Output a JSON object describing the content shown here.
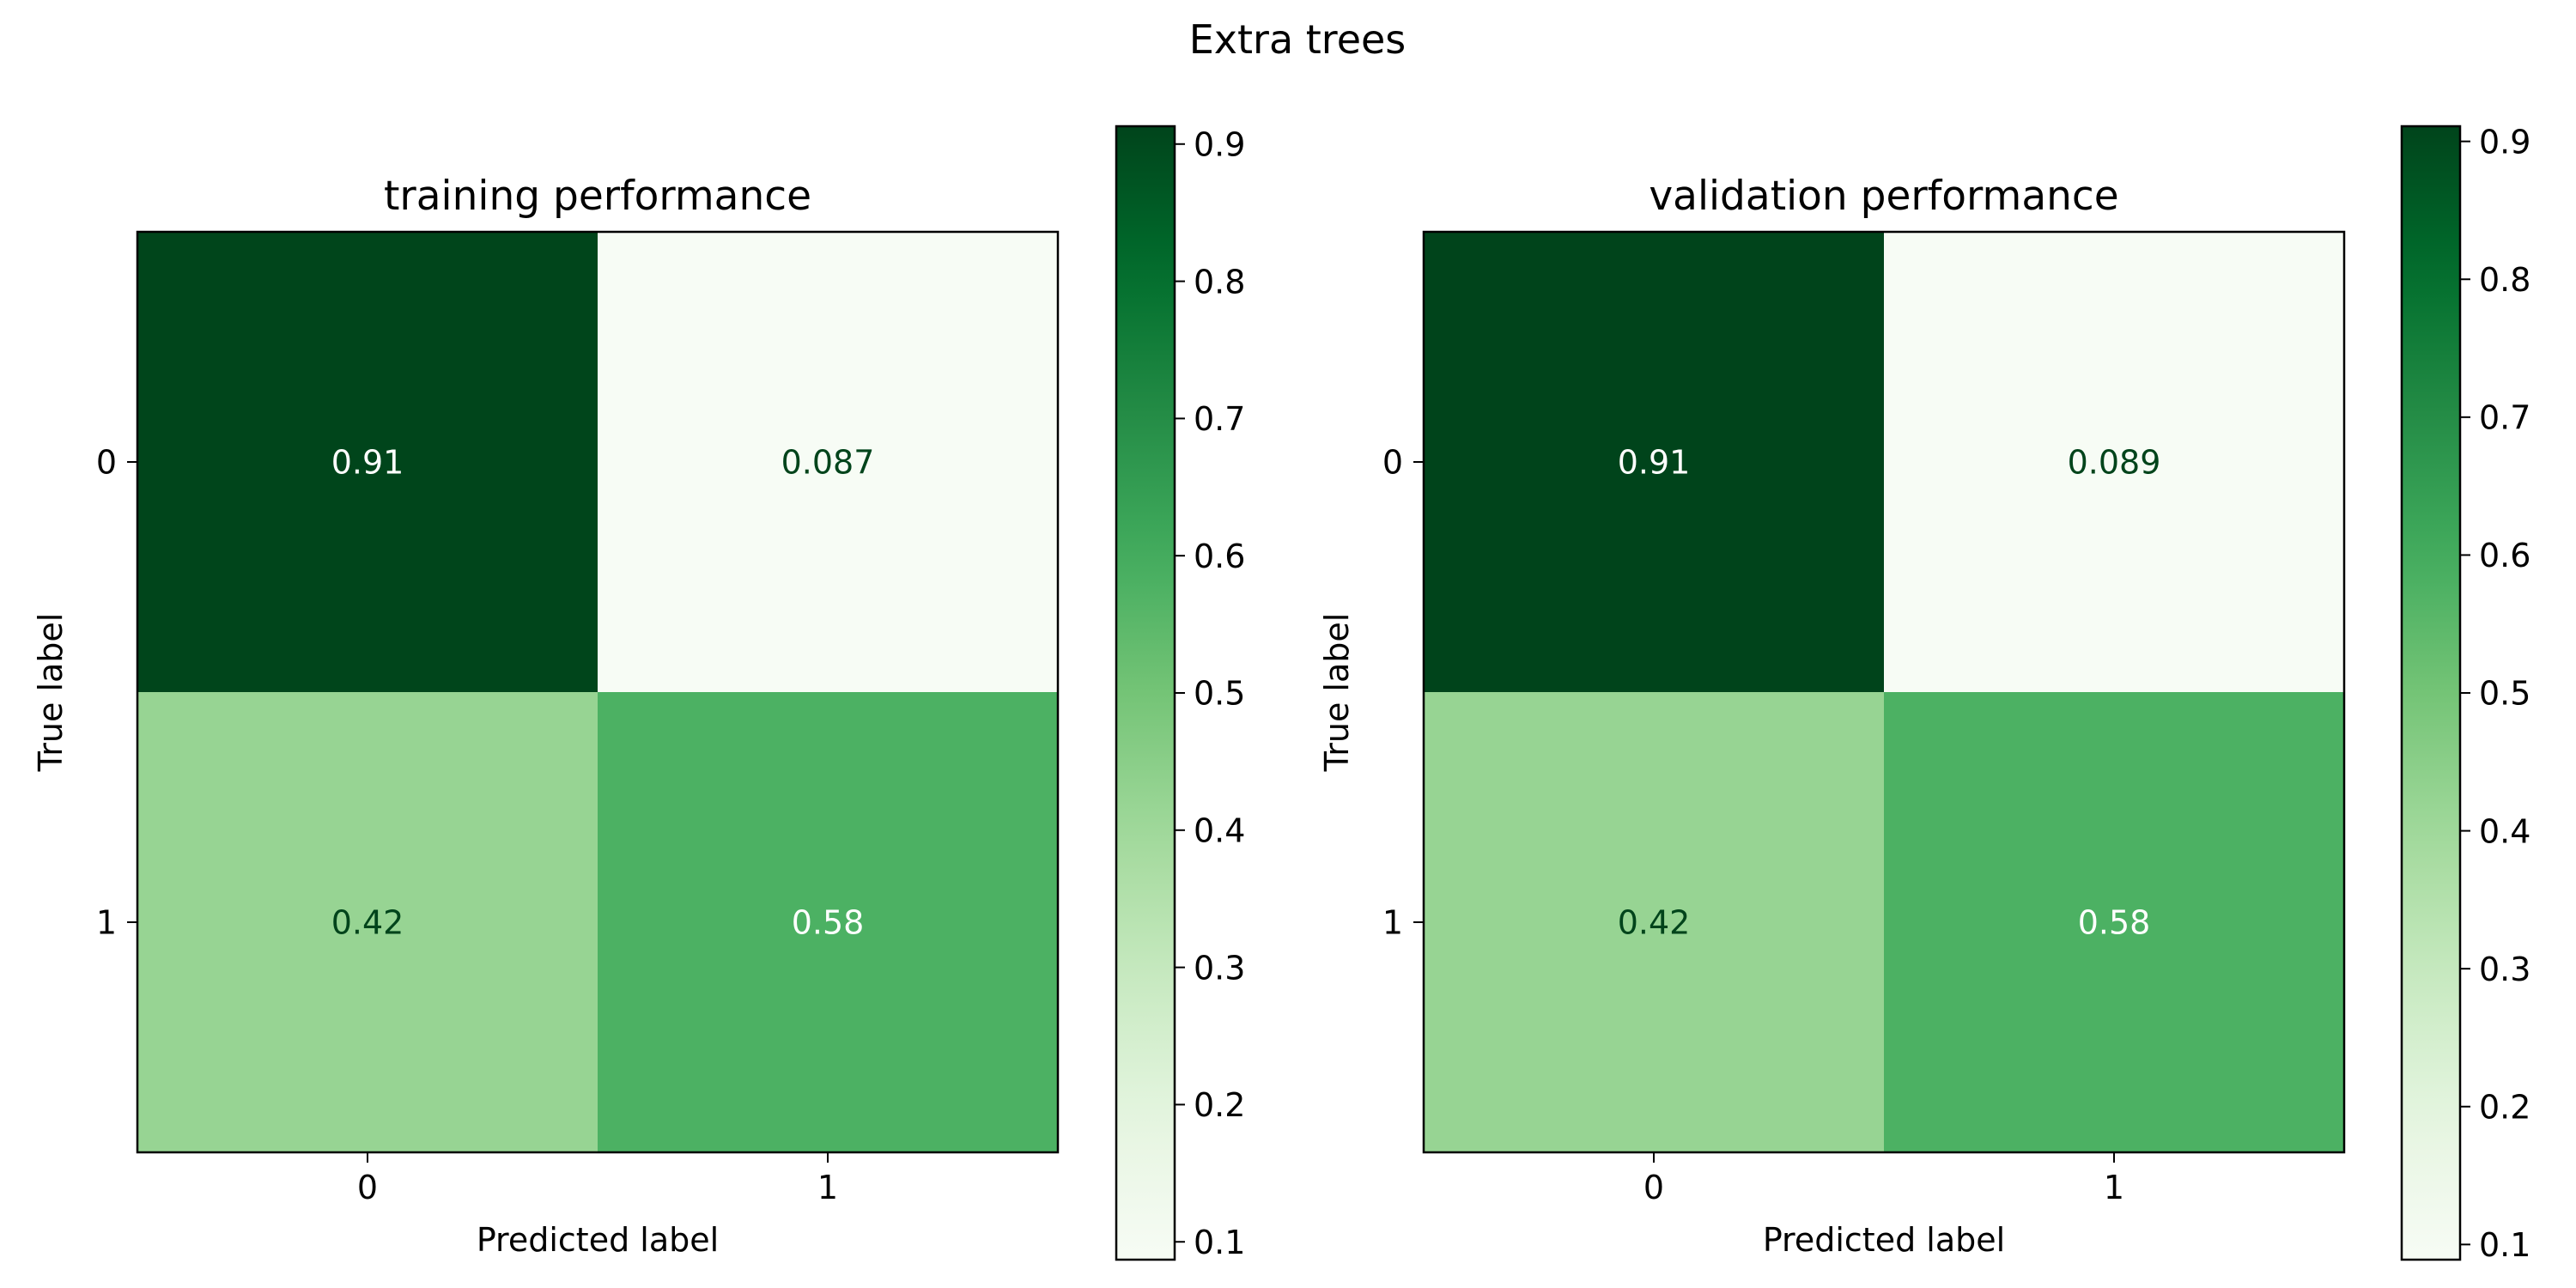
{
  "chart_data": {
    "title": "Extra trees",
    "type": "heatmap",
    "colormap": "Greens",
    "panels": [
      {
        "title": "training performance",
        "xlabel": "Predicted label",
        "ylabel": "True label",
        "x_categories": [
          "0",
          "1"
        ],
        "y_categories": [
          "0",
          "1"
        ],
        "cells": [
          {
            "true": "0",
            "pred": "0",
            "value": 0.91,
            "label": "0.91"
          },
          {
            "true": "0",
            "pred": "1",
            "value": 0.087,
            "label": "0.087"
          },
          {
            "true": "1",
            "pred": "0",
            "value": 0.42,
            "label": "0.42"
          },
          {
            "true": "1",
            "pred": "1",
            "value": 0.58,
            "label": "0.58"
          }
        ],
        "colorbar": {
          "range": [
            0.087,
            0.913
          ],
          "ticks": [
            0.1,
            0.2,
            0.3,
            0.4,
            0.5,
            0.6,
            0.7,
            0.8,
            0.9
          ],
          "tick_labels": [
            "0.1",
            "0.2",
            "0.3",
            "0.4",
            "0.5",
            "0.6",
            "0.7",
            "0.8",
            "0.9"
          ]
        }
      },
      {
        "title": "validation performance",
        "xlabel": "Predicted label",
        "ylabel": "True label",
        "x_categories": [
          "0",
          "1"
        ],
        "y_categories": [
          "0",
          "1"
        ],
        "cells": [
          {
            "true": "0",
            "pred": "0",
            "value": 0.91,
            "label": "0.91"
          },
          {
            "true": "0",
            "pred": "1",
            "value": 0.089,
            "label": "0.089"
          },
          {
            "true": "1",
            "pred": "0",
            "value": 0.42,
            "label": "0.42"
          },
          {
            "true": "1",
            "pred": "1",
            "value": 0.58,
            "label": "0.58"
          }
        ],
        "colorbar": {
          "range": [
            0.089,
            0.911
          ],
          "ticks": [
            0.1,
            0.2,
            0.3,
            0.4,
            0.5,
            0.6,
            0.7,
            0.8,
            0.9
          ],
          "tick_labels": [
            "0.1",
            "0.2",
            "0.3",
            "0.4",
            "0.5",
            "0.6",
            "0.7",
            "0.8",
            "0.9"
          ]
        }
      }
    ]
  }
}
